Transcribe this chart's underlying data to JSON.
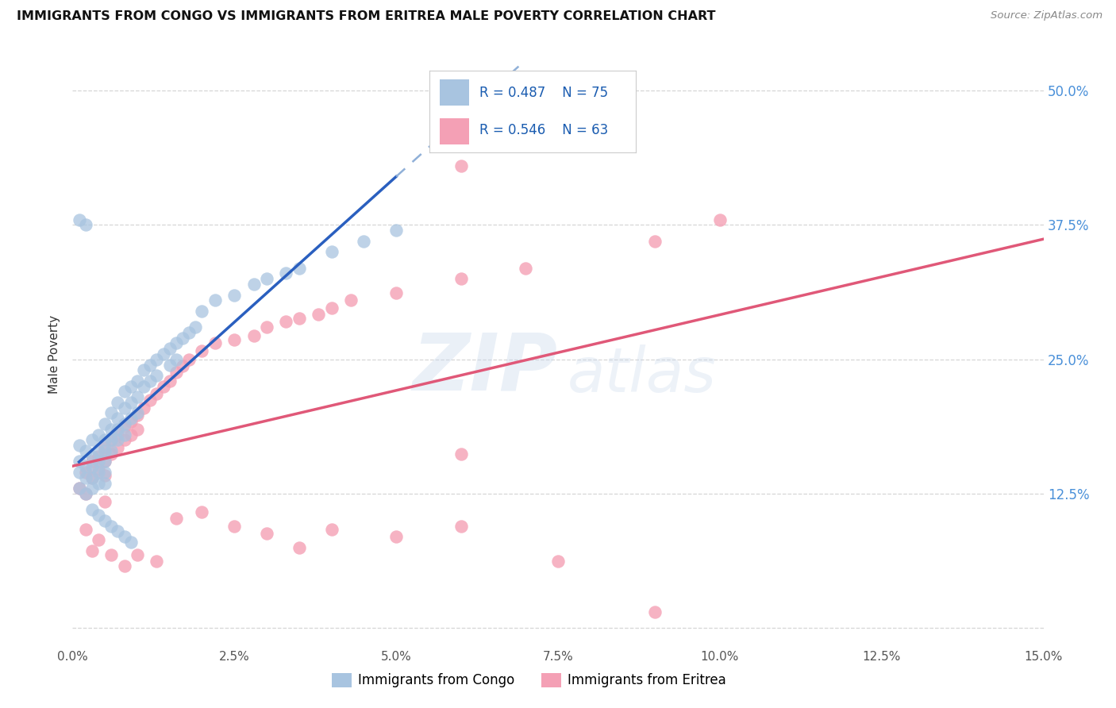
{
  "title": "IMMIGRANTS FROM CONGO VS IMMIGRANTS FROM ERITREA MALE POVERTY CORRELATION CHART",
  "source": "Source: ZipAtlas.com",
  "ylabel": "Male Poverty",
  "xlim": [
    0.0,
    0.15
  ],
  "ylim": [
    -0.015,
    0.525
  ],
  "congo_color": "#a8c4e0",
  "eritrea_color": "#f4a0b5",
  "congo_line_color": "#2a5fbf",
  "eritrea_line_color": "#e05878",
  "congo_dashed_color": "#90b0d8",
  "legend_R_color": "#1a5cb0",
  "R_congo": "0.487",
  "N_congo": "75",
  "R_eritrea": "0.546",
  "N_eritrea": "63",
  "watermark_zip": "ZIP",
  "watermark_atlas": "atlas",
  "background_color": "#ffffff",
  "grid_color": "#cccccc",
  "ytick_vals": [
    0.0,
    0.125,
    0.25,
    0.375,
    0.5
  ],
  "ytick_labels": [
    "",
    "12.5%",
    "25.0%",
    "37.5%",
    "50.0%"
  ],
  "xtick_vals": [
    0.0,
    0.025,
    0.05,
    0.075,
    0.1,
    0.125,
    0.15
  ],
  "xtick_labels": [
    "0.0%",
    "2.5%",
    "5.0%",
    "7.5%",
    "10.0%",
    "12.5%",
    "15.0%"
  ],
  "congo_x": [
    0.001,
    0.001,
    0.001,
    0.001,
    0.002,
    0.002,
    0.002,
    0.002,
    0.003,
    0.003,
    0.003,
    0.003,
    0.003,
    0.004,
    0.004,
    0.004,
    0.004,
    0.004,
    0.005,
    0.005,
    0.005,
    0.005,
    0.005,
    0.005,
    0.006,
    0.006,
    0.006,
    0.006,
    0.007,
    0.007,
    0.007,
    0.007,
    0.008,
    0.008,
    0.008,
    0.008,
    0.009,
    0.009,
    0.009,
    0.01,
    0.01,
    0.01,
    0.011,
    0.011,
    0.012,
    0.012,
    0.013,
    0.013,
    0.014,
    0.015,
    0.015,
    0.016,
    0.016,
    0.017,
    0.018,
    0.019,
    0.02,
    0.022,
    0.025,
    0.028,
    0.03,
    0.033,
    0.035,
    0.04,
    0.045,
    0.05,
    0.001,
    0.002,
    0.003,
    0.004,
    0.005,
    0.006,
    0.007,
    0.008,
    0.009
  ],
  "congo_y": [
    0.155,
    0.17,
    0.145,
    0.13,
    0.165,
    0.15,
    0.14,
    0.125,
    0.175,
    0.16,
    0.15,
    0.14,
    0.13,
    0.18,
    0.165,
    0.155,
    0.145,
    0.135,
    0.19,
    0.175,
    0.165,
    0.155,
    0.145,
    0.135,
    0.2,
    0.185,
    0.175,
    0.165,
    0.21,
    0.195,
    0.185,
    0.175,
    0.22,
    0.205,
    0.19,
    0.18,
    0.225,
    0.21,
    0.195,
    0.23,
    0.215,
    0.2,
    0.24,
    0.225,
    0.245,
    0.23,
    0.25,
    0.235,
    0.255,
    0.26,
    0.245,
    0.265,
    0.25,
    0.27,
    0.275,
    0.28,
    0.295,
    0.305,
    0.31,
    0.32,
    0.325,
    0.33,
    0.335,
    0.35,
    0.36,
    0.37,
    0.38,
    0.375,
    0.11,
    0.105,
    0.1,
    0.095,
    0.09,
    0.085,
    0.08
  ],
  "eritrea_x": [
    0.001,
    0.002,
    0.002,
    0.003,
    0.003,
    0.004,
    0.004,
    0.005,
    0.005,
    0.005,
    0.006,
    0.006,
    0.007,
    0.007,
    0.008,
    0.008,
    0.009,
    0.009,
    0.01,
    0.01,
    0.011,
    0.012,
    0.013,
    0.014,
    0.015,
    0.016,
    0.017,
    0.018,
    0.02,
    0.022,
    0.025,
    0.028,
    0.03,
    0.033,
    0.035,
    0.038,
    0.04,
    0.043,
    0.05,
    0.06,
    0.07,
    0.09,
    0.1,
    0.003,
    0.004,
    0.006,
    0.008,
    0.01,
    0.013,
    0.016,
    0.02,
    0.025,
    0.03,
    0.035,
    0.04,
    0.05,
    0.06,
    0.075,
    0.09,
    0.005,
    0.06,
    0.002,
    0.06
  ],
  "eritrea_y": [
    0.13,
    0.145,
    0.125,
    0.155,
    0.14,
    0.16,
    0.148,
    0.168,
    0.155,
    0.142,
    0.175,
    0.162,
    0.18,
    0.168,
    0.188,
    0.175,
    0.192,
    0.18,
    0.198,
    0.185,
    0.205,
    0.212,
    0.218,
    0.225,
    0.23,
    0.238,
    0.244,
    0.25,
    0.258,
    0.265,
    0.268,
    0.272,
    0.28,
    0.285,
    0.288,
    0.292,
    0.298,
    0.305,
    0.312,
    0.325,
    0.335,
    0.36,
    0.38,
    0.072,
    0.082,
    0.068,
    0.058,
    0.068,
    0.062,
    0.102,
    0.108,
    0.095,
    0.088,
    0.075,
    0.092,
    0.085,
    0.095,
    0.062,
    0.015,
    0.118,
    0.43,
    0.092,
    0.162
  ]
}
